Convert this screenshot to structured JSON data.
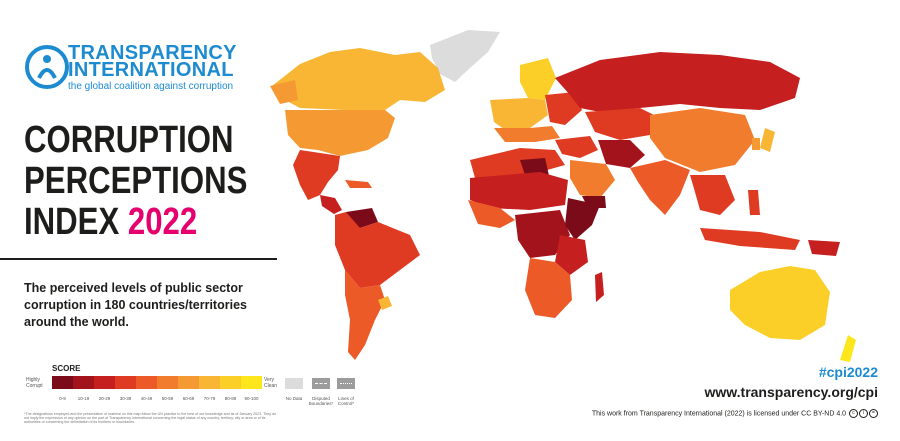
{
  "brand": {
    "name_line1": "TRANSPARENCY",
    "name_line2": "INTERNATIONAL",
    "tagline": "the global coalition against corruption"
  },
  "title": {
    "line1": "CORRUPTION",
    "line2": "PERCEPTIONS",
    "line3_prefix": "INDEX",
    "year": "2022",
    "accent_color": "#e5006e"
  },
  "subtitle": "The perceived levels of public sector corruption in 180 countries/territories around the world.",
  "legend": {
    "title": "SCORE",
    "low_label_1": "Highly",
    "low_label_2": "Corrupt",
    "high_label_1": "Very",
    "high_label_2": "Clean",
    "bins": [
      {
        "label": "0-9",
        "color": "#7b0b18"
      },
      {
        "label": "10-19",
        "color": "#a3131c"
      },
      {
        "label": "20-29",
        "color": "#c51f1f"
      },
      {
        "label": "30-39",
        "color": "#df3a22"
      },
      {
        "label": "40-49",
        "color": "#ec5a28"
      },
      {
        "label": "50-59",
        "color": "#f27c2e"
      },
      {
        "label": "60-69",
        "color": "#f59a33"
      },
      {
        "label": "70-79",
        "color": "#f8b634"
      },
      {
        "label": "80-89",
        "color": "#fbcf28"
      },
      {
        "label": "90-100",
        "color": "#fde61b"
      }
    ],
    "no_data": "No Data",
    "disputed_1": "Disputed",
    "disputed_2": "Boundaries*",
    "control_1": "Lines of",
    "control_2": "Control*",
    "no_data_color": "#dcdcdc"
  },
  "disclaimer": "*The designations employed and the presentation of material on this map follow the UN practice to the best of our knowledge and as of January 2023. They do not imply the expression of any opinion on the part of Transparency International concerning the legal status of any country, territory, city or area or of its authorities or concerning the delimitation of its frontiers or boundaries.",
  "hashtag": "#cpi2022",
  "website": "www.transparency.org/cpi",
  "license": "This work from Transparency International (2022) is licensed under CC BY-ND 4.0",
  "brand_color": "#1d8bd0"
}
